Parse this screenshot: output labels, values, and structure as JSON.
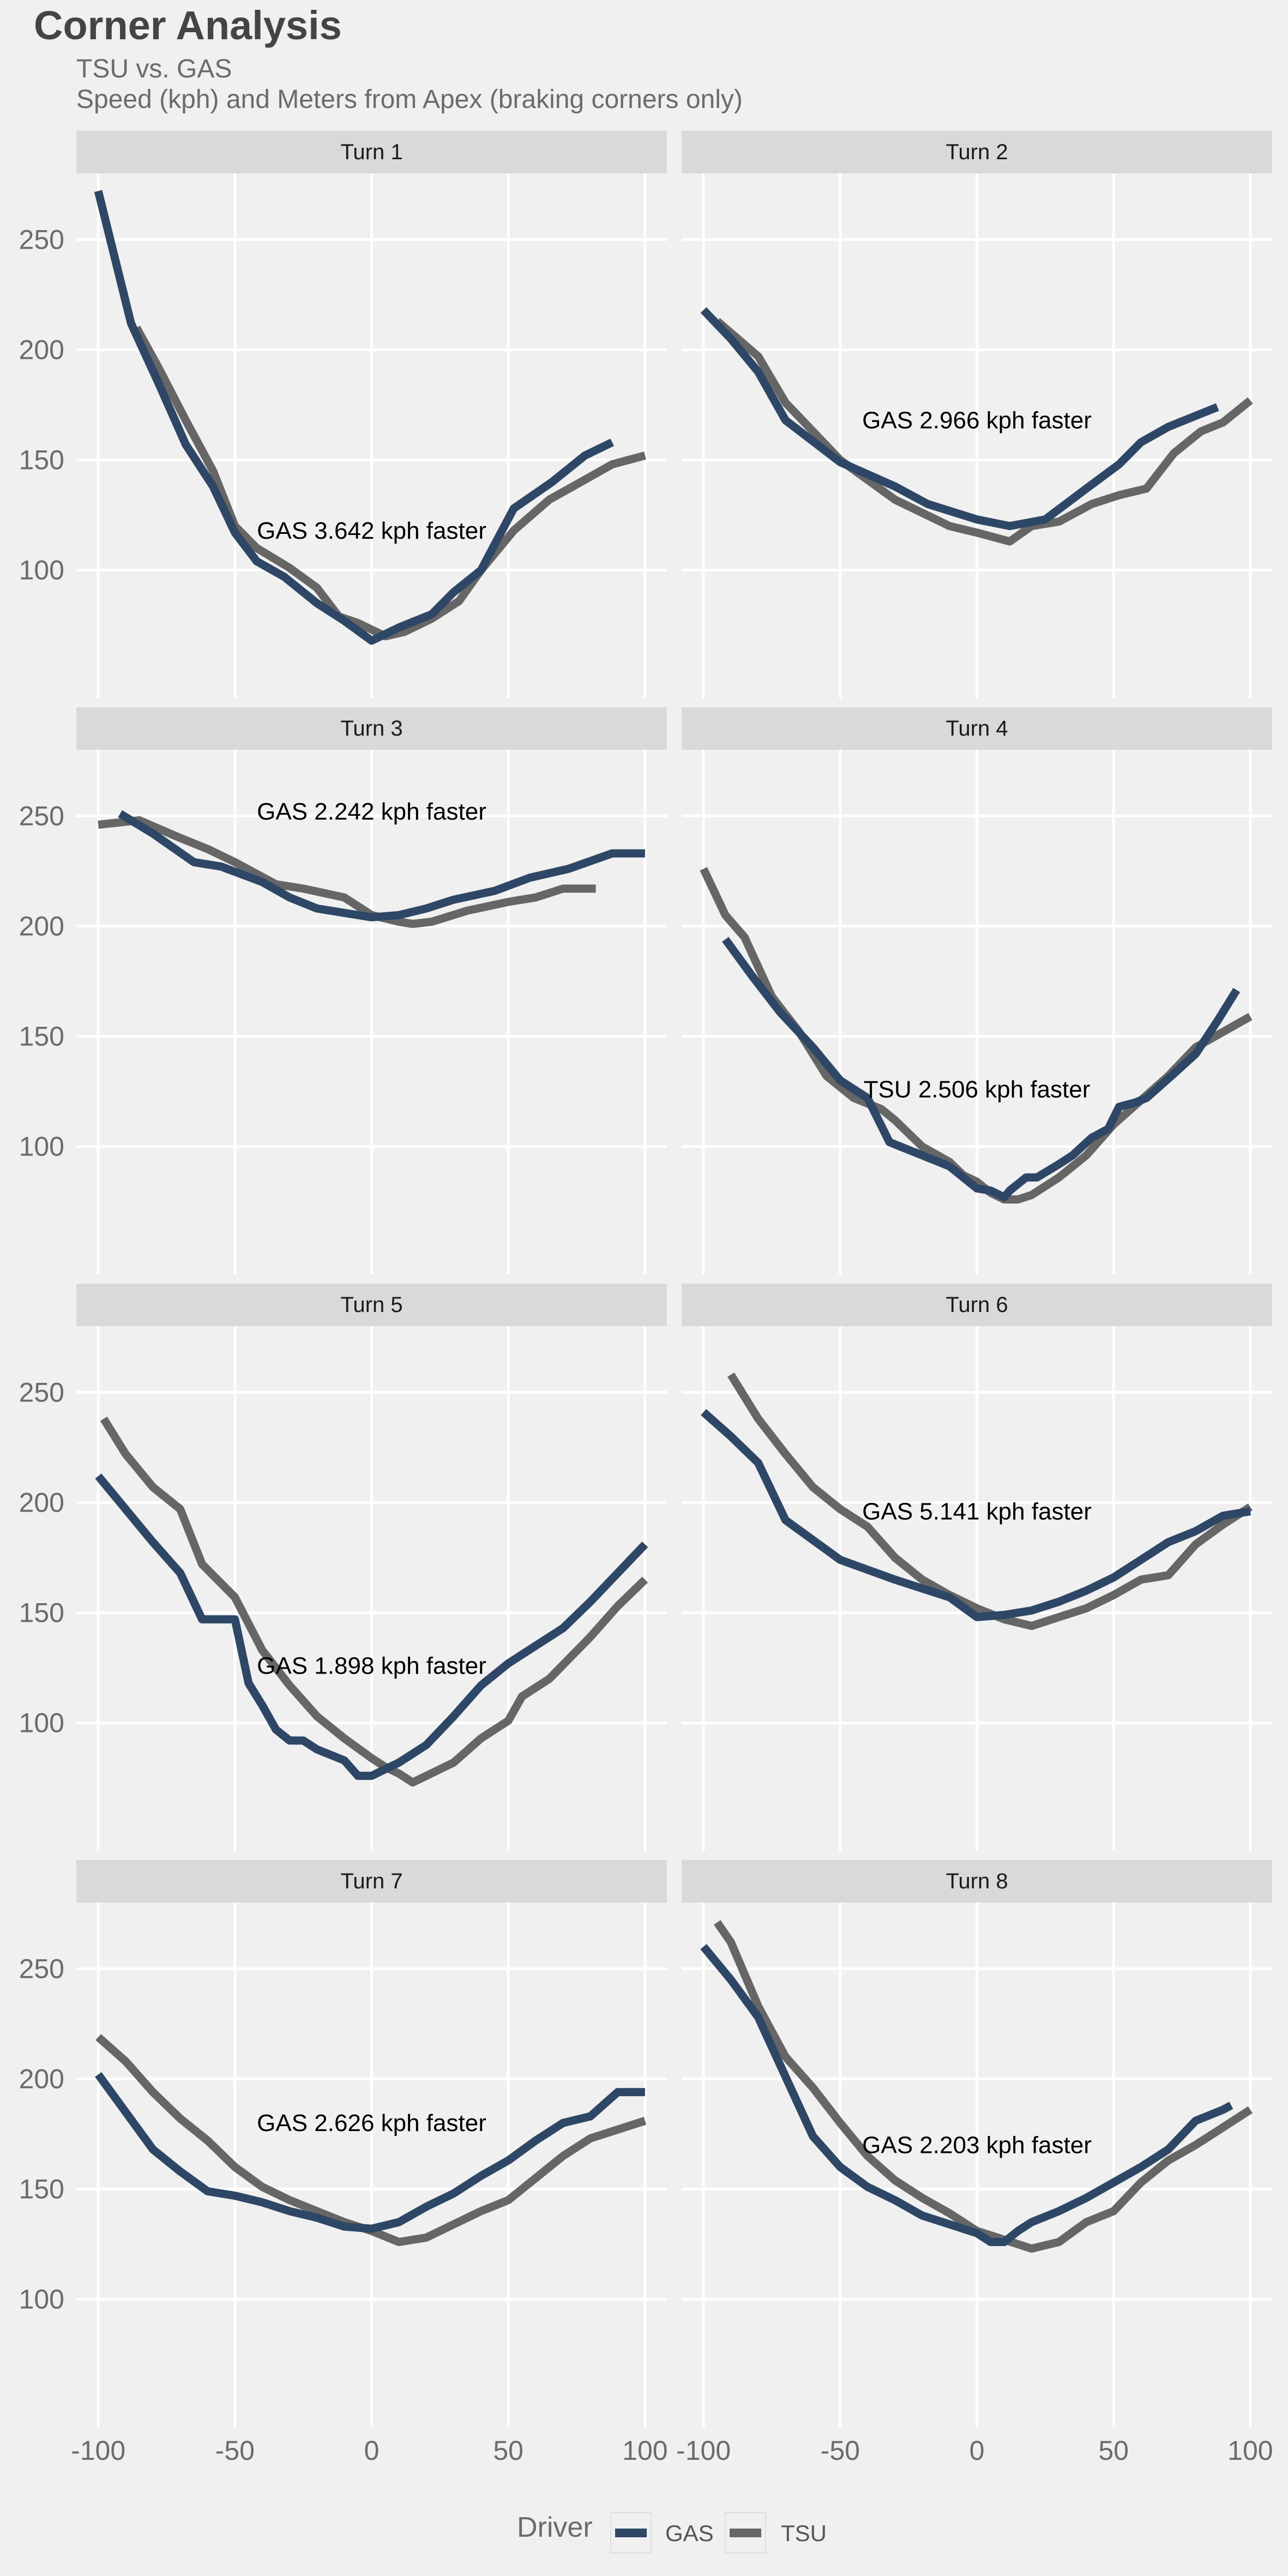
{
  "figure": {
    "title": "Corner Analysis",
    "subtitle_1": "TSU vs. GAS",
    "subtitle_2": "Speed (kph) and Meters from Apex (braking corners only)"
  },
  "legend": {
    "title": "Driver",
    "position": "bottom",
    "entries": [
      {
        "name": "GAS",
        "color": "#2e4766"
      },
      {
        "name": "TSU",
        "color": "#666666"
      }
    ]
  },
  "colors": {
    "background": "#f0f0f0",
    "strip": "#d9d9d9",
    "grid": "#ffffff"
  },
  "chart_data": {
    "type": "line",
    "facet_layout": {
      "rows": 4,
      "cols": 2
    },
    "grid": true,
    "xlim": [
      -108,
      108
    ],
    "ylim": [
      42,
      280
    ],
    "x_ticks": [
      -100,
      -50,
      0,
      50,
      100
    ],
    "y_ticks": [
      100,
      150,
      200,
      250
    ],
    "panels": [
      {
        "label": "Turn 1",
        "annotation": "GAS 3.642 kph faster",
        "annotation_at": {
          "x": 0,
          "y": 118
        },
        "series": [
          {
            "name": "GAS",
            "x": [
              -100,
              -88,
              -78,
              -68,
              -58,
              -50,
              -42,
              -32,
              -20,
              -10,
              0,
              10,
              22,
              30,
              40,
              52,
              66,
              78,
              88
            ],
            "y": [
              272,
              212,
              185,
              157,
              138,
              117,
              104,
              97,
              85,
              77,
              68,
              74,
              80,
              90,
              100,
              128,
              140,
              152,
              158
            ]
          },
          {
            "name": "TSU",
            "x": [
              -86,
              -78,
              -68,
              -58,
              -50,
              -42,
              -30,
              -20,
              -12,
              -5,
              5,
              12,
              22,
              32,
              40,
              52,
              65,
              78,
              88,
              100
            ],
            "y": [
              210,
              192,
              168,
              145,
              120,
              110,
              101,
              92,
              79,
              76,
              70,
              72,
              78,
              86,
              100,
              118,
              132,
              141,
              148,
              152
            ]
          }
        ]
      },
      {
        "label": "Turn 2",
        "annotation": "GAS 2.966 kph faster",
        "annotation_at": {
          "x": 0,
          "y": 168
        },
        "series": [
          {
            "name": "GAS",
            "x": [
              -100,
              -90,
              -80,
              -70,
              -50,
              -30,
              -18,
              0,
              12,
              25,
              40,
              52,
              60,
              70,
              80,
              88
            ],
            "y": [
              218,
              205,
              190,
              168,
              149,
              138,
              130,
              123,
              120,
              123,
              137,
              148,
              158,
              165,
              170,
              174
            ]
          },
          {
            "name": "TSU",
            "x": [
              -95,
              -80,
              -70,
              -50,
              -30,
              -20,
              -10,
              0,
              12,
              20,
              30,
              42,
              52,
              62,
              72,
              82,
              90,
              100
            ],
            "y": [
              213,
              197,
              176,
              150,
              132,
              126,
              120,
              117,
              113,
              120,
              122,
              130,
              134,
              137,
              153,
              163,
              167,
              177
            ]
          }
        ]
      },
      {
        "label": "Turn 3",
        "annotation": "GAS 2.242 kph faster",
        "annotation_at": {
          "x": 0,
          "y": 252
        },
        "series": [
          {
            "name": "GAS",
            "x": [
              -92,
              -80,
              -65,
              -55,
              -40,
              -30,
              -20,
              -10,
              0,
              10,
              20,
              30,
              45,
              58,
              72,
              88,
              100
            ],
            "y": [
              251,
              242,
              229,
              227,
              220,
              213,
              208,
              206,
              204,
              205,
              208,
              212,
              216,
              222,
              226,
              233,
              233
            ]
          },
          {
            "name": "TSU",
            "x": [
              -100,
              -85,
              -70,
              -60,
              -50,
              -35,
              -25,
              -10,
              0,
              10,
              15,
              22,
              35,
              50,
              60,
              70,
              82
            ],
            "y": [
              246,
              248,
              240,
              235,
              229,
              219,
              217,
              213,
              205,
              202,
              201,
              202,
              207,
              211,
              213,
              217,
              217
            ]
          }
        ]
      },
      {
        "label": "Turn 4",
        "annotation": "TSU 2.506 kph faster",
        "annotation_at": {
          "x": 0,
          "y": 126
        },
        "series": [
          {
            "name": "GAS",
            "x": [
              -92,
              -82,
              -72,
              -60,
              -50,
              -40,
              -32,
              -20,
              -10,
              -5,
              0,
              5,
              10,
              12,
              18,
              22,
              30,
              35,
              42,
              48,
              52,
              58,
              62,
              72,
              80,
              88,
              95
            ],
            "y": [
              194,
              177,
              161,
              145,
              130,
              122,
              102,
              96,
              91,
              86,
              81,
              80,
              77,
              80,
              86,
              86,
              92,
              96,
              104,
              108,
              118,
              120,
              122,
              133,
              142,
              157,
              171
            ]
          },
          {
            "name": "TSU",
            "x": [
              -100,
              -92,
              -85,
              -75,
              -65,
              -55,
              -45,
              -35,
              -30,
              -20,
              -10,
              -5,
              0,
              5,
              10,
              15,
              20,
              30,
              40,
              50,
              60,
              70,
              80,
              90,
              100
            ],
            "y": [
              226,
              205,
              195,
              168,
              152,
              132,
              122,
              117,
              112,
              100,
              93,
              87,
              84,
              79,
              76,
              76,
              78,
              86,
              96,
              110,
              121,
              132,
              145,
              152,
              159
            ]
          }
        ]
      },
      {
        "label": "Turn 5",
        "annotation": "GAS 1.898 kph faster",
        "annotation_at": {
          "x": 0,
          "y": 126
        },
        "series": [
          {
            "name": "GAS",
            "x": [
              -100,
              -90,
              -80,
              -70,
              -62,
              -55,
              -50,
              -45,
              -40,
              -35,
              -30,
              -25,
              -20,
              -10,
              -5,
              0,
              5,
              10,
              20,
              30,
              40,
              50,
              60,
              70,
              80,
              90,
              100
            ],
            "y": [
              212,
              197,
              182,
              168,
              147,
              147,
              147,
              118,
              108,
              97,
              92,
              92,
              88,
              83,
              76,
              76,
              79,
              82,
              90,
              103,
              117,
              127,
              135,
              143,
              155,
              168,
              181
            ]
          },
          {
            "name": "TSU",
            "x": [
              -98,
              -90,
              -80,
              -70,
              -62,
              -50,
              -40,
              -30,
              -20,
              -10,
              0,
              5,
              10,
              15,
              20,
              30,
              40,
              50,
              55,
              65,
              80,
              90,
              100
            ],
            "y": [
              238,
              222,
              207,
              197,
              172,
              157,
              133,
              117,
              103,
              93,
              84,
              80,
              77,
              73,
              76,
              82,
              93,
              101,
              112,
              120,
              139,
              153,
              165
            ]
          }
        ]
      },
      {
        "label": "Turn 6",
        "annotation": "GAS 5.141 kph faster",
        "annotation_at": {
          "x": 0,
          "y": 196
        },
        "series": [
          {
            "name": "GAS",
            "x": [
              -100,
              -90,
              -80,
              -70,
              -50,
              -30,
              -20,
              -10,
              0,
              10,
              20,
              30,
              40,
              50,
              60,
              70,
              80,
              90,
              100
            ],
            "y": [
              241,
              230,
              218,
              192,
              174,
              165,
              161,
              157,
              148,
              149,
              151,
              155,
              160,
              166,
              174,
              182,
              187,
              194,
              196
            ]
          },
          {
            "name": "TSU",
            "x": [
              -90,
              -80,
              -70,
              -60,
              -50,
              -40,
              -30,
              -20,
              -10,
              0,
              10,
              20,
              30,
              40,
              50,
              60,
              70,
              80,
              90,
              100
            ],
            "y": [
              258,
              238,
              222,
              207,
              197,
              189,
              175,
              165,
              158,
              152,
              147,
              144,
              148,
              152,
              158,
              165,
              167,
              181,
              190,
              198
            ]
          }
        ]
      },
      {
        "label": "Turn 7",
        "annotation": "GAS 2.626 kph faster",
        "annotation_at": {
          "x": 0,
          "y": 180
        },
        "series": [
          {
            "name": "GAS",
            "x": [
              -100,
              -90,
              -80,
              -70,
              -60,
              -50,
              -40,
              -30,
              -20,
              -10,
              0,
              10,
              20,
              30,
              40,
              50,
              60,
              70,
              80,
              90,
              100
            ],
            "y": [
              202,
              185,
              168,
              158,
              149,
              147,
              144,
              140,
              137,
              133,
              132,
              135,
              142,
              148,
              156,
              163,
              172,
              180,
              183,
              194,
              194
            ]
          },
          {
            "name": "TSU",
            "x": [
              -100,
              -90,
              -80,
              -70,
              -60,
              -50,
              -40,
              -30,
              -20,
              -10,
              0,
              10,
              20,
              30,
              40,
              50,
              60,
              70,
              80,
              90,
              100
            ],
            "y": [
              219,
              208,
              194,
              182,
              172,
              160,
              151,
              145,
              140,
              135,
              131,
              126,
              128,
              134,
              140,
              145,
              155,
              165,
              173,
              177,
              181
            ]
          }
        ]
      },
      {
        "label": "Turn 8",
        "annotation": "GAS 2.203 kph faster",
        "annotation_at": {
          "x": 0,
          "y": 170
        },
        "series": [
          {
            "name": "GAS",
            "x": [
              -100,
              -90,
              -80,
              -70,
              -60,
              -50,
              -40,
              -30,
              -20,
              -10,
              0,
              5,
              10,
              15,
              20,
              30,
              40,
              50,
              60,
              70,
              80,
              90,
              93
            ],
            "y": [
              260,
              245,
              228,
              201,
              174,
              160,
              151,
              145,
              138,
              134,
              130,
              126,
              126,
              131,
              135,
              140,
              146,
              153,
              160,
              168,
              181,
              186,
              188
            ]
          },
          {
            "name": "TSU",
            "x": [
              -95,
              -90,
              -80,
              -70,
              -60,
              -50,
              -40,
              -30,
              -20,
              -10,
              0,
              10,
              20,
              30,
              40,
              50,
              60,
              70,
              80,
              90,
              100
            ],
            "y": [
              271,
              262,
              233,
              210,
              196,
              180,
              165,
              154,
              146,
              139,
              131,
              127,
              123,
              126,
              135,
              140,
              153,
              163,
              170,
              178,
              186
            ]
          }
        ]
      }
    ]
  }
}
